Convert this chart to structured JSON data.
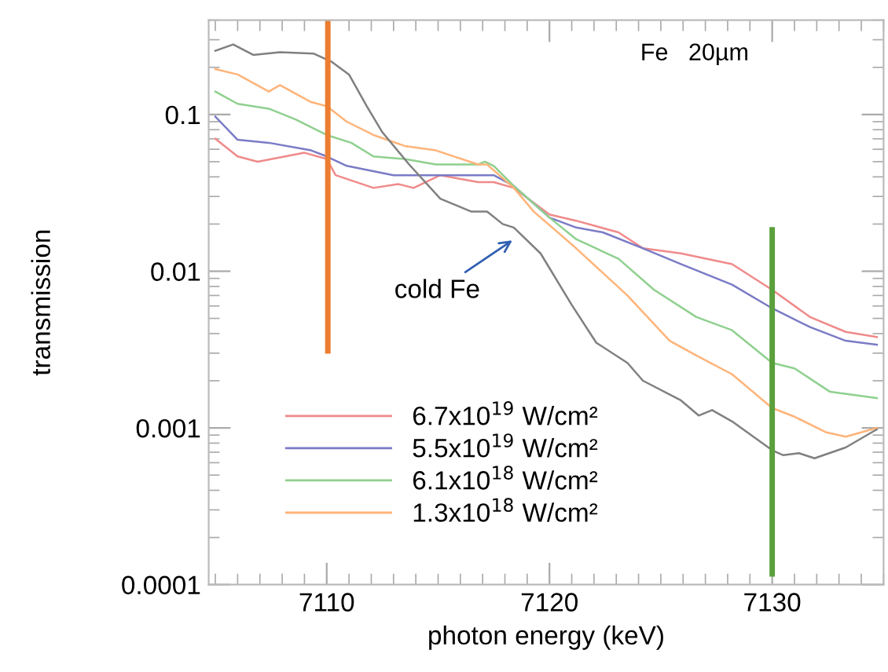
{
  "chart_data": {
    "type": "line",
    "xlabel": "photon energy (keV)",
    "ylabel": "transmission",
    "log": "y",
    "xlim": [
      7104.7,
      7135
    ],
    "ylim": [
      0.0001,
      0.4
    ],
    "xticks": [
      7110,
      7120,
      7130
    ],
    "yticks": [
      0.0001,
      0.001,
      0.01,
      0.1
    ],
    "grid": false,
    "legend": "bottom left",
    "marker": "none",
    "line_style": "solid",
    "annotations": [
      "Fe   20µm",
      "cold Fe"
    ],
    "series": [
      {
        "name": "6.7x10$^{19}$ W/cm²",
        "color": "#f08a8a",
        "x": [
          7105.0,
          7106.0,
          7106.9,
          7109.0,
          7110.0,
          7110.4,
          7112.1,
          7113.2,
          7113.9,
          7115.1,
          7116.8,
          7117.5,
          7118.4,
          7120.0,
          7121.2,
          7123.1,
          7124.2,
          7125.9,
          7128.2,
          7130.0,
          7131.7,
          7133.3,
          7134.7
        ],
        "values": [
          0.07,
          0.054,
          0.05,
          0.057,
          0.052,
          0.041,
          0.034,
          0.036,
          0.034,
          0.041,
          0.037,
          0.037,
          0.034,
          0.023,
          0.021,
          0.0177,
          0.014,
          0.013,
          0.0111,
          0.0076,
          0.0051,
          0.0041,
          0.0038
        ]
      },
      {
        "name": "5.5x10$^{19}$ W/cm²",
        "color": "#7b7bc6",
        "x": [
          7105.0,
          7106.0,
          7107.4,
          7109.3,
          7110.0,
          7110.9,
          7113.0,
          7114.4,
          7116.8,
          7117.5,
          7118.4,
          7120.0,
          7121.2,
          7122.4,
          7124.2,
          7125.9,
          7128.2,
          7130.0,
          7131.7,
          7133.3,
          7134.7
        ],
        "values": [
          0.097,
          0.069,
          0.066,
          0.059,
          0.054,
          0.047,
          0.041,
          0.041,
          0.041,
          0.041,
          0.035,
          0.022,
          0.019,
          0.0177,
          0.014,
          0.0111,
          0.0082,
          0.0058,
          0.0044,
          0.0036,
          0.0034
        ]
      },
      {
        "name": "6.1x10$^{18}$ W/cm²",
        "color": "#8fd08f",
        "x": [
          7105.0,
          7106.0,
          7107.4,
          7108.6,
          7110.0,
          7111.1,
          7112.1,
          7113.5,
          7114.9,
          7116.8,
          7117.1,
          7117.5,
          7118.4,
          7120.0,
          7121.2,
          7123.1,
          7124.7,
          7126.6,
          7128.2,
          7130.0,
          7131.0,
          7132.6,
          7134.7
        ],
        "values": [
          0.14,
          0.117,
          0.109,
          0.093,
          0.074,
          0.066,
          0.054,
          0.052,
          0.048,
          0.048,
          0.05,
          0.047,
          0.035,
          0.022,
          0.016,
          0.012,
          0.0076,
          0.0051,
          0.0042,
          0.0026,
          0.0024,
          0.0017,
          0.00155
        ]
      },
      {
        "name": "1.3x10$^{18}$ W/cm²",
        "color": "#ffb47a",
        "x": [
          7105.0,
          7106.0,
          7107.4,
          7107.9,
          7109.3,
          7110.0,
          7110.9,
          7112.1,
          7113.5,
          7114.9,
          7116.8,
          7117.2,
          7118.4,
          7119.3,
          7121.2,
          7123.5,
          7125.4,
          7126.6,
          7128.2,
          7130.0,
          7131.0,
          7132.4,
          7133.3,
          7134.7
        ],
        "values": [
          0.195,
          0.18,
          0.14,
          0.154,
          0.12,
          0.113,
          0.09,
          0.074,
          0.063,
          0.059,
          0.048,
          0.048,
          0.034,
          0.024,
          0.014,
          0.007,
          0.0036,
          0.0029,
          0.0022,
          0.00134,
          0.00118,
          0.00094,
          0.00088,
          0.001
        ]
      },
      {
        "color": "#808080",
        "x": [
          7105.0,
          7105.8,
          7106.7,
          7107.9,
          7109.4,
          7110.2,
          7111.0,
          7111.8,
          7112.5,
          7113.7,
          7115.1,
          7116.5,
          7117.2,
          7117.9,
          7118.4,
          7119.6,
          7121.0,
          7122.1,
          7123.5,
          7124.2,
          7125.9,
          7126.7,
          7127.3,
          7128.2,
          7130.0,
          7130.5,
          7131.2,
          7131.9,
          7133.3,
          7134.7
        ],
        "values": [
          0.255,
          0.28,
          0.24,
          0.25,
          0.245,
          0.218,
          0.18,
          0.113,
          0.077,
          0.048,
          0.029,
          0.024,
          0.024,
          0.02,
          0.019,
          0.013,
          0.0061,
          0.0035,
          0.0026,
          0.002,
          0.0015,
          0.0012,
          0.0013,
          0.0011,
          0.00072,
          0.00067,
          0.00069,
          0.00064,
          0.00075,
          0.00098
        ]
      },
      {
        "color": "#ed7d31",
        "x": [
          7110.05,
          7110.05
        ],
        "values": [
          0.0031,
          0.4
        ]
      },
      {
        "color": "#5aa03c",
        "x": [
          7130.0,
          7130.0
        ],
        "values": [
          0.000117,
          0.0184
        ]
      }
    ]
  }
}
